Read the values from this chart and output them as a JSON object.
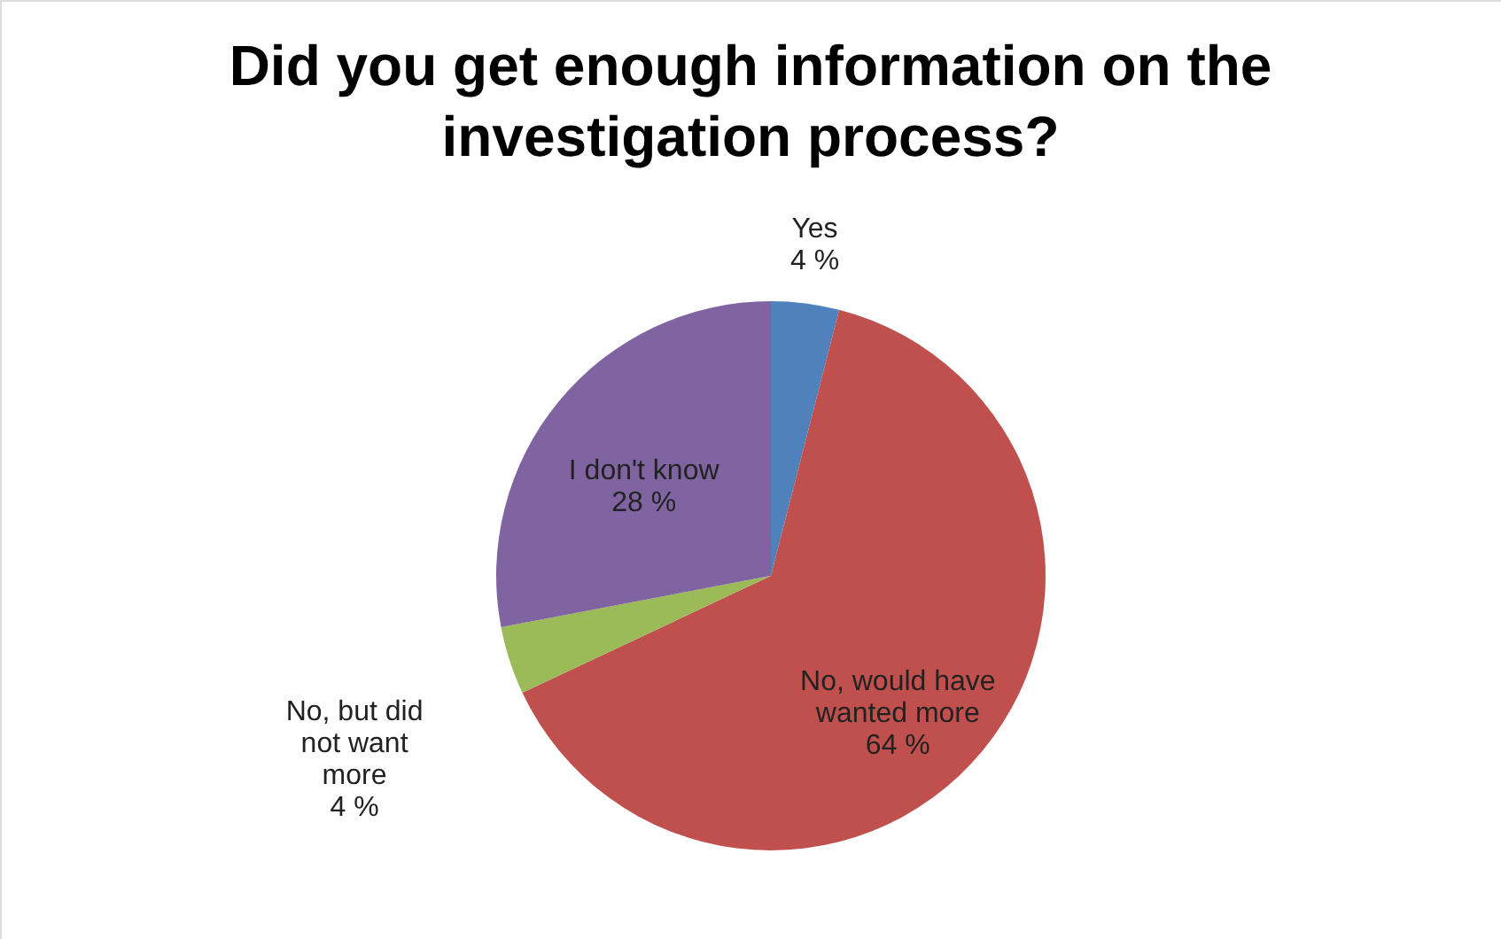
{
  "chart_data": {
    "type": "pie",
    "title": "Did you get enough information on the investigation process?",
    "categories": [
      "Yes",
      "No, would have wanted more",
      "No, but did not want more",
      "I don't know"
    ],
    "values": [
      4,
      64,
      4,
      28
    ],
    "value_labels": [
      "4 %",
      "64 %",
      "4 %",
      "28 %"
    ],
    "colors": [
      "#4f81bd",
      "#c0504d",
      "#9bbb59",
      "#8064a2"
    ],
    "legend": false
  }
}
